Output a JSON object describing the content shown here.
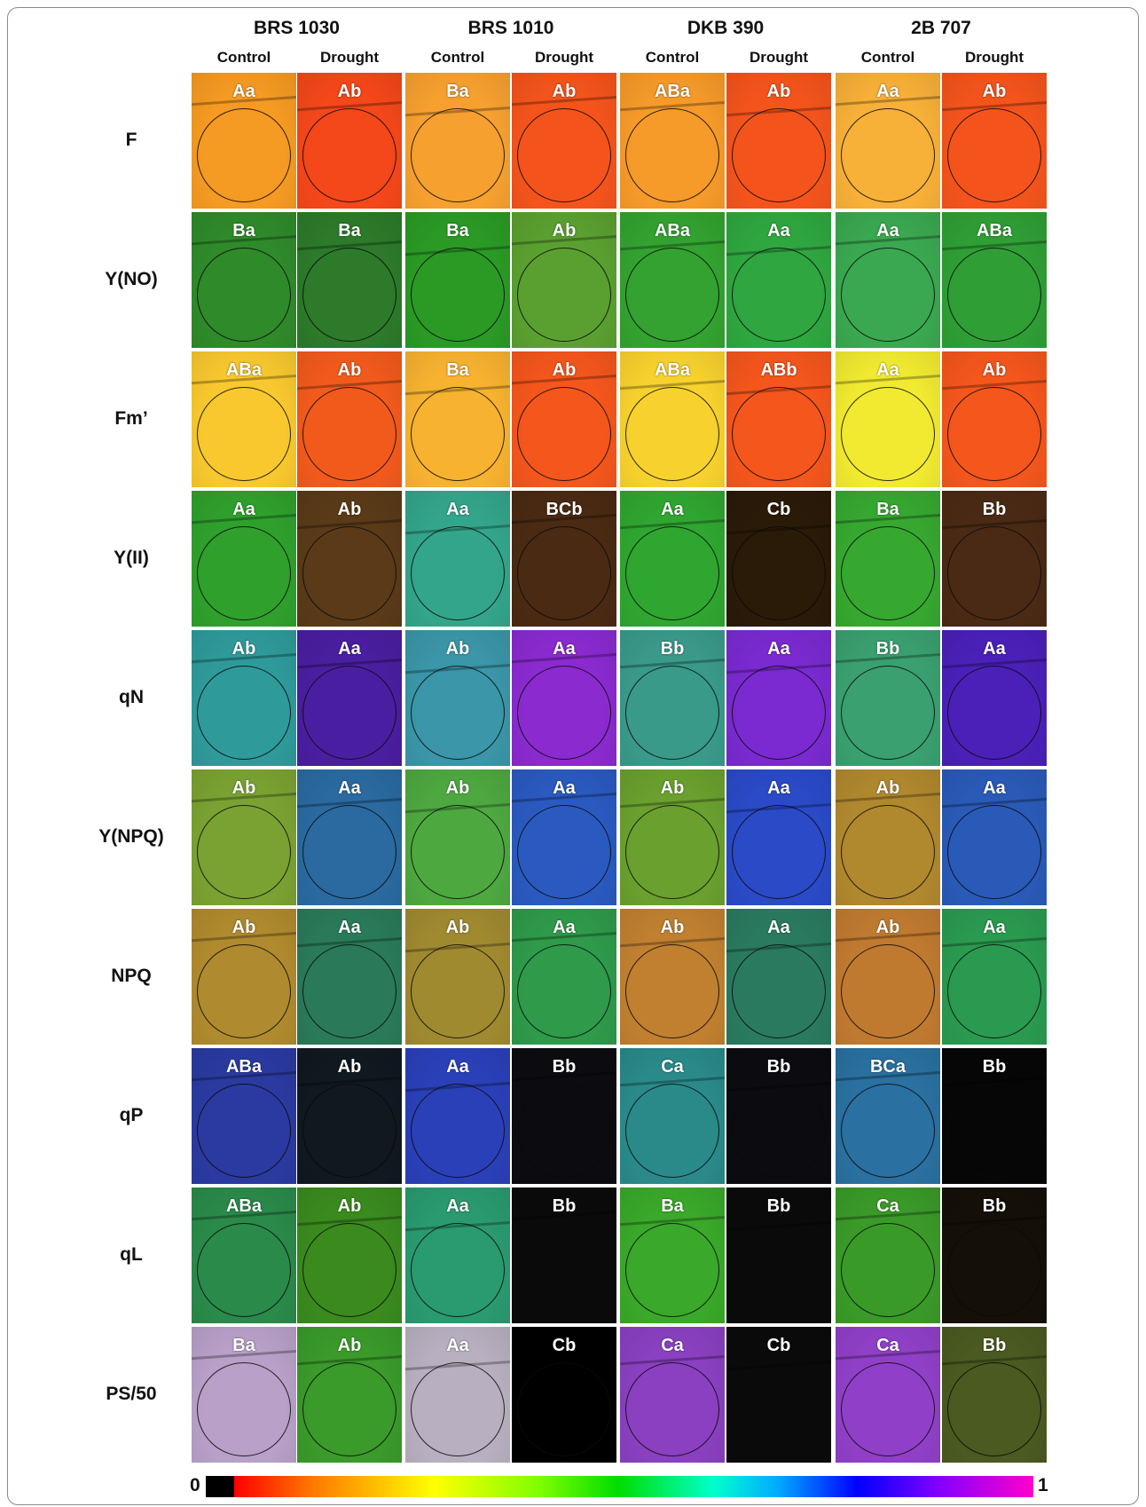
{
  "varieties": [
    "BRS 1030",
    "BRS 1010",
    "DKB 390",
    "2B 707"
  ],
  "treatments": [
    "Control",
    "Drought",
    "Control",
    "Drought",
    "Control",
    "Drought",
    "Control",
    "Drought"
  ],
  "rows": [
    {
      "label": "F",
      "letters": [
        "Aa",
        "Ab",
        "Ba",
        "Ab",
        "ABa",
        "Ab",
        "Aa",
        "Ab"
      ]
    },
    {
      "label": "Y(NO)",
      "letters": [
        "Ba",
        "Ba",
        "Ba",
        "Ab",
        "ABa",
        "Aa",
        "Aa",
        "ABa"
      ]
    },
    {
      "label": "Fm’",
      "letters": [
        "ABa",
        "Ab",
        "Ba",
        "Ab",
        "ABa",
        "ABb",
        "Aa",
        "Ab"
      ]
    },
    {
      "label": "Y(II)",
      "letters": [
        "Aa",
        "Ab",
        "Aa",
        "BCb",
        "Aa",
        "Cb",
        "Ba",
        "Bb"
      ]
    },
    {
      "label": "qN",
      "letters": [
        "Ab",
        "Aa",
        "Ab",
        "Aa",
        "Bb",
        "Aa",
        "Bb",
        "Aa"
      ]
    },
    {
      "label": "Y(NPQ)",
      "letters": [
        "Ab",
        "Aa",
        "Ab",
        "Aa",
        "Ab",
        "Aa",
        "Ab",
        "Aa"
      ]
    },
    {
      "label": "NPQ",
      "letters": [
        "Ab",
        "Aa",
        "Ab",
        "Aa",
        "Ab",
        "Aa",
        "Ab",
        "Aa"
      ]
    },
    {
      "label": "qP",
      "letters": [
        "ABa",
        "Ab",
        "Aa",
        "Bb",
        "Ca",
        "Bb",
        "BCa",
        "Bb"
      ]
    },
    {
      "label": "qL",
      "letters": [
        "ABa",
        "Ab",
        "Aa",
        "Bb",
        "Ba",
        "Bb",
        "Ca",
        "Bb"
      ]
    },
    {
      "label": "PS/50",
      "letters": [
        "Ba",
        "Ab",
        "Aa",
        "Cb",
        "Ca",
        "Cb",
        "Ca",
        "Bb"
      ]
    }
  ],
  "panel_colors": [
    [
      "#f59a22",
      "#f4471a",
      "#f6a030",
      "#f4541c",
      "#f69a2a",
      "#f4541c",
      "#f7b038",
      "#f4541c"
    ],
    [
      "#2f8a2a",
      "#2c7a2a",
      "#2a9a25",
      "#5aa030",
      "#33a230",
      "#2fa640",
      "#3aa850",
      "#2f9e35"
    ],
    [
      "#f8c82e",
      "#f25a1c",
      "#f7b230",
      "#f4561c",
      "#f7d22e",
      "#f4561c",
      "#f1ea30",
      "#f4561c"
    ],
    [
      "#2fa02c",
      "#5a3a18",
      "#33a58a",
      "#4a2a12",
      "#2fa630",
      "#2a1a08",
      "#36a830",
      "#4a2a14"
    ],
    [
      "#2f9a9a",
      "#4a1ea0",
      "#3a96a8",
      "#8a2acf",
      "#3a9a8a",
      "#7a2ad0",
      "#3aa070",
      "#4a20b8"
    ],
    [
      "#7aa232",
      "#2a6aa0",
      "#4ea840",
      "#2a5ac0",
      "#6aa02e",
      "#2a4ac8",
      "#b0882e",
      "#2a5ab8"
    ],
    [
      "#b08a2e",
      "#2a7a5a",
      "#a08a30",
      "#2e9a4a",
      "#c08030",
      "#2a7a60",
      "#c07a30",
      "#2a9a50"
    ],
    [
      "#2a3aa0",
      "#101820",
      "#2a40b8",
      "#0c0c10",
      "#2a8a8a",
      "#0c0c10",
      "#2a70a0",
      "#060606"
    ],
    [
      "#2a8a4a",
      "#3a8a1e",
      "#2a9a70",
      "#0a0a0a",
      "#3aa82a",
      "#0a0a0a",
      "#3a9a28",
      "#141008"
    ],
    [
      "#b8a0c8",
      "#3a9a2a",
      "#b8b0c0",
      "#000000",
      "#8a40c0",
      "#0a0a0a",
      "#9040c8",
      "#4a5a20"
    ]
  ],
  "colorbar": {
    "min_label": "0",
    "max_label": "1"
  }
}
